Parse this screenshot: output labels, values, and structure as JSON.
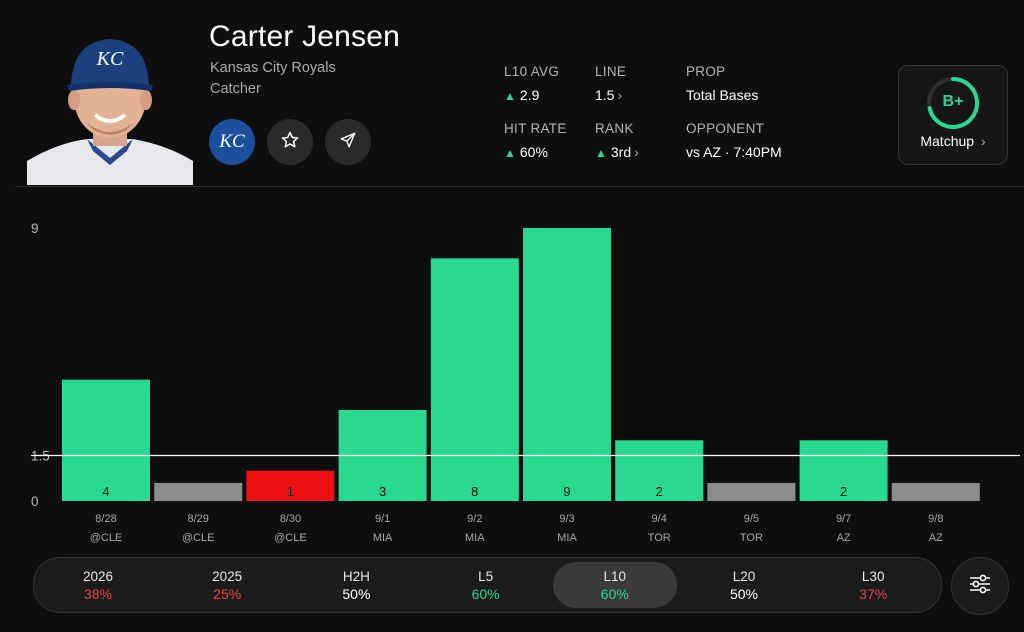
{
  "player": {
    "name": "Carter Jensen",
    "team": "Kansas City Royals",
    "position": "Catcher",
    "team_logo_text": "KC"
  },
  "stats": {
    "l10_avg": {
      "label": "L10 AVG",
      "value": "2.9",
      "trend": "up"
    },
    "line": {
      "label": "LINE",
      "value": "1.5"
    },
    "prop": {
      "label": "PROP",
      "value": "Total Bases"
    },
    "hit_rate": {
      "label": "HIT RATE",
      "value": "60%",
      "trend": "up"
    },
    "rank": {
      "label": "RANK",
      "value": "3rd",
      "trend": "up"
    },
    "opponent": {
      "label": "OPPONENT",
      "value": "vs AZ · 7:40PM"
    }
  },
  "matchup": {
    "grade": "B+",
    "label": "Matchup",
    "arrow": "›"
  },
  "chart_data": {
    "type": "bar",
    "categories": [
      "8/28",
      "8/29",
      "8/30",
      "9/1",
      "9/2",
      "9/3",
      "9/4",
      "9/5",
      "9/7",
      "9/8"
    ],
    "opponents": [
      "@CLE",
      "@CLE",
      "@CLE",
      "MIA",
      "MIA",
      "MIA",
      "TOR",
      "TOR",
      "AZ",
      "AZ"
    ],
    "values": [
      4,
      0,
      1,
      3,
      8,
      9,
      2,
      0,
      2,
      0
    ],
    "bar_labels": [
      "4",
      "",
      "1",
      "3",
      "8",
      "9",
      "2",
      "",
      "2",
      ""
    ],
    "status": [
      "over",
      "zero",
      "under",
      "over",
      "over",
      "over",
      "over",
      "zero",
      "over",
      "zero"
    ],
    "line": 1.5,
    "yticks": [
      "9",
      "1.5",
      "0"
    ],
    "ylim": [
      0,
      9
    ],
    "colors": {
      "over": "#2ad990",
      "under": "#ee1111",
      "zero": "#8c8c8c"
    }
  },
  "tabs": [
    {
      "label": "2026",
      "value": "38%",
      "color": "#ef4444"
    },
    {
      "label": "2025",
      "value": "25%",
      "color": "#ef4444"
    },
    {
      "label": "H2H",
      "value": "50%",
      "color": "#ffffff"
    },
    {
      "label": "L5",
      "value": "60%",
      "color": "#2ad990"
    },
    {
      "label": "L10",
      "value": "60%",
      "color": "#2ad990",
      "active": true
    },
    {
      "label": "L20",
      "value": "50%",
      "color": "#ffffff"
    },
    {
      "label": "L30",
      "value": "37%",
      "color": "#ef4444"
    }
  ],
  "icons": {
    "favorite": "star-icon",
    "share": "send-icon",
    "filter": "sliders-icon"
  }
}
